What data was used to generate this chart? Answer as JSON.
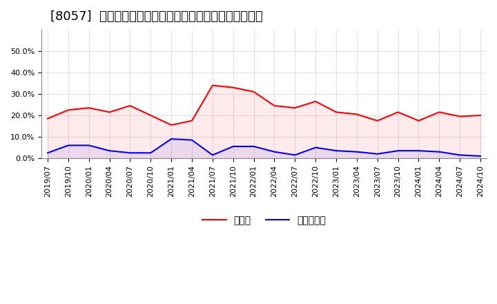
{
  "title": "[8057]  現預金、有利子負債の総資産に対する比率の推移",
  "x_labels": [
    "2019/07",
    "2019/10",
    "2020/01",
    "2020/04",
    "2020/07",
    "2020/10",
    "2021/01",
    "2021/04",
    "2021/07",
    "2021/10",
    "2022/01",
    "2022/04",
    "2022/07",
    "2022/10",
    "2023/01",
    "2023/04",
    "2023/07",
    "2023/10",
    "2024/01",
    "2024/04",
    "2024/07",
    "2024/10"
  ],
  "cash_ratio": [
    0.185,
    0.225,
    0.235,
    0.215,
    0.245,
    0.2,
    0.155,
    0.175,
    0.34,
    0.33,
    0.31,
    0.245,
    0.235,
    0.265,
    0.215,
    0.205,
    0.175,
    0.215,
    0.175,
    0.215,
    0.195,
    0.2
  ],
  "debt_ratio": [
    0.025,
    0.06,
    0.06,
    0.035,
    0.025,
    0.025,
    0.09,
    0.085,
    0.015,
    0.055,
    0.055,
    0.03,
    0.015,
    0.05,
    0.035,
    0.03,
    0.02,
    0.035,
    0.035,
    0.03,
    0.015,
    0.01
  ],
  "cash_color": "#ff0000",
  "debt_color": "#0000ff",
  "background_color": "#ffffff",
  "grid_color": "#aaaaaa",
  "ylim": [
    0.0,
    0.6
  ],
  "yticks": [
    0.0,
    0.1,
    0.2,
    0.3,
    0.4,
    0.5
  ],
  "legend_cash": "現預金",
  "legend_debt": "有利子負債",
  "title_fontsize": 13,
  "axis_fontsize": 8,
  "legend_fontsize": 10
}
